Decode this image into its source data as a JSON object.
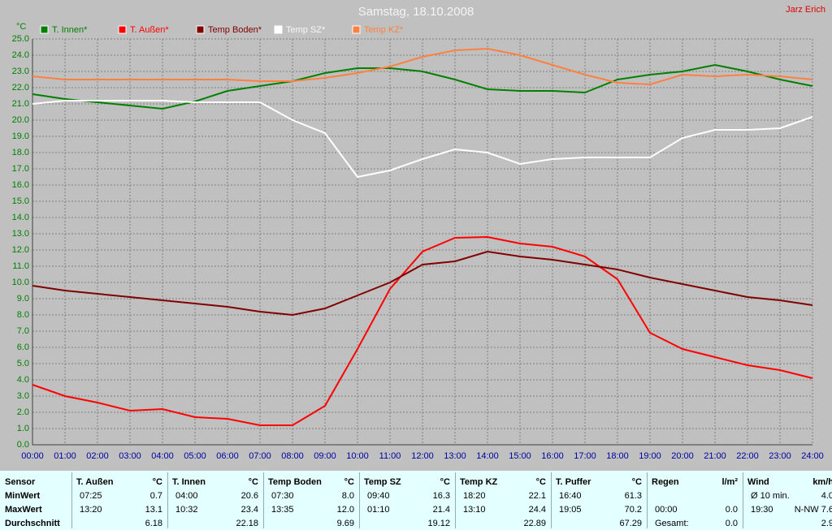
{
  "chart_data": {
    "type": "line",
    "title": "Samstag, 18.10.2008",
    "annotations": [
      "Jarz Erich"
    ],
    "y_label": "°C",
    "x": [
      0,
      1,
      2,
      3,
      4,
      5,
      6,
      7,
      8,
      9,
      10,
      11,
      12,
      13,
      14,
      15,
      16,
      17,
      18,
      19,
      20,
      21,
      22,
      23,
      24
    ],
    "xlim": [
      0,
      24
    ],
    "xticks": [
      {
        "value": 0,
        "label": "00:00"
      },
      {
        "value": 1,
        "label": "01:00"
      },
      {
        "value": 2,
        "label": "02:00"
      },
      {
        "value": 3,
        "label": "03:00"
      },
      {
        "value": 4,
        "label": "04:00"
      },
      {
        "value": 5,
        "label": "05:00"
      },
      {
        "value": 6,
        "label": "06:00"
      },
      {
        "value": 7,
        "label": "07:00"
      },
      {
        "value": 8,
        "label": "08:00"
      },
      {
        "value": 9,
        "label": "09:00"
      },
      {
        "value": 10,
        "label": "10:00"
      },
      {
        "value": 11,
        "label": "11:00"
      },
      {
        "value": 12,
        "label": "12:00"
      },
      {
        "value": 13,
        "label": "13:00"
      },
      {
        "value": 14,
        "label": "14:00"
      },
      {
        "value": 15,
        "label": "15:00"
      },
      {
        "value": 16,
        "label": "16:00"
      },
      {
        "value": 17,
        "label": "17:00"
      },
      {
        "value": 18,
        "label": "18:00"
      },
      {
        "value": 19,
        "label": "19:00"
      },
      {
        "value": 20,
        "label": "20:00"
      },
      {
        "value": 21,
        "label": "21:00"
      },
      {
        "value": 22,
        "label": "22:00"
      },
      {
        "value": 23,
        "label": "23:00"
      },
      {
        "value": 24,
        "label": "24:00"
      }
    ],
    "ylim": [
      0,
      25
    ],
    "yticks": [
      {
        "value": 0,
        "label": "0.0"
      },
      {
        "value": 1,
        "label": "1.0"
      },
      {
        "value": 2,
        "label": "2.0"
      },
      {
        "value": 3,
        "label": "3.0"
      },
      {
        "value": 4,
        "label": "4.0"
      },
      {
        "value": 5,
        "label": "5.0"
      },
      {
        "value": 6,
        "label": "6.0"
      },
      {
        "value": 7,
        "label": "7.0"
      },
      {
        "value": 8,
        "label": "8.0"
      },
      {
        "value": 9,
        "label": "9.0"
      },
      {
        "value": 10,
        "label": "10.0"
      },
      {
        "value": 11,
        "label": "11.0"
      },
      {
        "value": 12,
        "label": "12.0"
      },
      {
        "value": 13,
        "label": "13.0"
      },
      {
        "value": 14,
        "label": "14.0"
      },
      {
        "value": 15,
        "label": "15.0"
      },
      {
        "value": 16,
        "label": "16.0"
      },
      {
        "value": 17,
        "label": "17.0"
      },
      {
        "value": 18,
        "label": "18.0"
      },
      {
        "value": 19,
        "label": "19.0"
      },
      {
        "value": 20,
        "label": "20.0"
      },
      {
        "value": 21,
        "label": "21.0"
      },
      {
        "value": 22,
        "label": "22.0"
      },
      {
        "value": 23,
        "label": "23.0"
      },
      {
        "value": 24,
        "label": "24.0"
      },
      {
        "value": 25,
        "label": "25.0"
      }
    ],
    "grid": true,
    "series": [
      {
        "name": "T. Innen*",
        "color": "#008000",
        "values": [
          21.6,
          21.3,
          21.1,
          20.9,
          20.7,
          21.15,
          21.8,
          22.1,
          22.4,
          22.9,
          23.2,
          23.2,
          23.0,
          22.5,
          21.9,
          21.8,
          21.8,
          21.7,
          22.5,
          22.8,
          23.0,
          23.4,
          23.0,
          22.5,
          22.1
        ]
      },
      {
        "name": "T. Außen*",
        "color": "#ff0000",
        "values": [
          3.7,
          3.0,
          2.6,
          2.1,
          2.2,
          1.7,
          1.6,
          1.2,
          1.2,
          2.4,
          5.9,
          9.6,
          11.9,
          12.75,
          12.8,
          12.4,
          12.2,
          11.6,
          10.2,
          6.9,
          5.9,
          5.4,
          4.9,
          4.6,
          4.1
        ]
      },
      {
        "name": "Temp Boden*",
        "color": "#800000",
        "values": [
          9.8,
          9.5,
          9.3,
          9.1,
          8.9,
          8.7,
          8.5,
          8.2,
          8.0,
          8.4,
          9.2,
          10.0,
          11.1,
          11.3,
          11.9,
          11.6,
          11.4,
          11.1,
          10.8,
          10.3,
          9.9,
          9.5,
          9.1,
          8.9,
          8.6
        ]
      },
      {
        "name": "Temp SZ*",
        "color": "#ffffff",
        "values": [
          21.0,
          21.2,
          21.2,
          21.2,
          21.2,
          21.1,
          21.1,
          21.1,
          20.0,
          19.2,
          16.5,
          16.9,
          17.6,
          18.2,
          18.0,
          17.3,
          17.6,
          17.7,
          17.7,
          17.7,
          18.9,
          19.4,
          19.4,
          19.5,
          20.2
        ]
      },
      {
        "name": "Temp KZ*",
        "color": "#ff8040",
        "values": [
          22.7,
          22.5,
          22.5,
          22.5,
          22.5,
          22.5,
          22.5,
          22.4,
          22.4,
          22.6,
          22.9,
          23.3,
          23.9,
          24.3,
          24.4,
          24.0,
          23.4,
          22.8,
          22.3,
          22.2,
          22.8,
          22.7,
          22.8,
          22.7,
          22.5
        ]
      }
    ]
  },
  "table": {
    "corner": "Sensor",
    "row_labels": [
      "MinWert",
      "MaxWert",
      "Durchschnitt"
    ],
    "columns": [
      {
        "name": "T. Außen",
        "unit": "°C",
        "rows": [
          [
            "07:25",
            "0.7"
          ],
          [
            "13:20",
            "13.1"
          ],
          [
            "6.18"
          ]
        ]
      },
      {
        "name": "T. Innen",
        "unit": "°C",
        "rows": [
          [
            "04:00",
            "20.6"
          ],
          [
            "10:32",
            "23.4"
          ],
          [
            "22.18"
          ]
        ]
      },
      {
        "name": "Temp Boden",
        "unit": "°C",
        "rows": [
          [
            "07:30",
            "8.0"
          ],
          [
            "13:35",
            "12.0"
          ],
          [
            "9.69"
          ]
        ]
      },
      {
        "name": "Temp SZ",
        "unit": "°C",
        "rows": [
          [
            "09:40",
            "16.3"
          ],
          [
            "01:10",
            "21.4"
          ],
          [
            "19.12"
          ]
        ]
      },
      {
        "name": "Temp KZ",
        "unit": "°C",
        "rows": [
          [
            "18:20",
            "22.1"
          ],
          [
            "13:10",
            "24.4"
          ],
          [
            "22.89"
          ]
        ]
      },
      {
        "name": "T. Puffer",
        "unit": "°C",
        "rows": [
          [
            "16:40",
            "61.3"
          ],
          [
            "19:05",
            "70.2"
          ],
          [
            "67.29"
          ]
        ]
      },
      {
        "name": "Regen",
        "unit": "l/m²",
        "rows": [
          [],
          [
            "00:00",
            "0.0"
          ],
          [
            "Gesamt:",
            "0.0"
          ]
        ]
      },
      {
        "name": "Wind",
        "unit": "km/h",
        "rows": [
          [
            "Ø 10 min.",
            "4.0"
          ],
          [
            "19:30",
            "N-NW 7.6"
          ],
          [
            "2.9"
          ]
        ]
      }
    ]
  }
}
